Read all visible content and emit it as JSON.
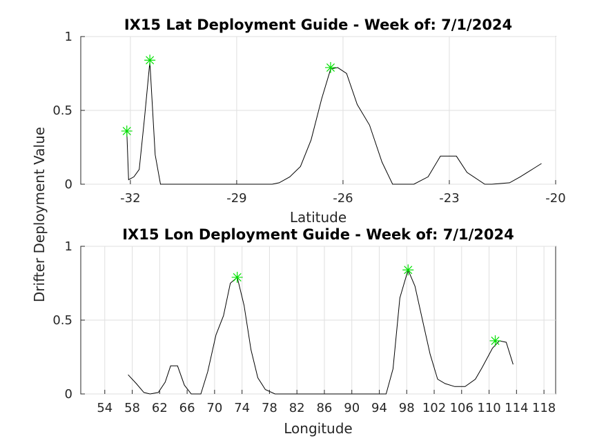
{
  "chart_data": [
    {
      "type": "line",
      "title": "IX15 Lat Deployment Guide - Week of: 7/1/2024",
      "xlabel": "Latitude",
      "ylabel": "Drifter Deployment Value",
      "xlim": [
        -33.4,
        -20
      ],
      "ylim": [
        0,
        1
      ],
      "xticks": [
        -32,
        -29,
        -26,
        -23,
        -20
      ],
      "yticks": [
        0,
        0.5,
        1
      ],
      "grid": true,
      "series": [
        {
          "x": [
            -32.1,
            -32.05,
            -31.9,
            -31.75,
            -31.6,
            -31.45,
            -31.3,
            -31.15,
            -30.9,
            -30.0,
            -29.0,
            -28.0,
            -27.8,
            -27.5,
            -27.2,
            -26.9,
            -26.6,
            -26.35,
            -26.15,
            -25.9,
            -25.6,
            -25.25,
            -24.9,
            -24.6,
            -24.3,
            -24.0,
            -23.6,
            -23.25,
            -22.8,
            -22.5,
            -22.0,
            -21.8,
            -21.3,
            -21.0,
            -20.6,
            -20.4
          ],
          "y": [
            0.36,
            0.03,
            0.05,
            0.1,
            0.45,
            0.83,
            0.2,
            0.0,
            0.0,
            0.0,
            0.0,
            0.0,
            0.01,
            0.05,
            0.12,
            0.3,
            0.58,
            0.78,
            0.79,
            0.75,
            0.54,
            0.4,
            0.15,
            0.0,
            0.0,
            0.0,
            0.05,
            0.19,
            0.19,
            0.08,
            0.0,
            0.0,
            0.01,
            0.05,
            0.11,
            0.14
          ]
        }
      ],
      "markers": [
        {
          "x": -32.1,
          "y": 0.36
        },
        {
          "x": -31.45,
          "y": 0.84
        },
        {
          "x": -26.35,
          "y": 0.79
        }
      ],
      "colors": {
        "line": "#000000",
        "marker": "#00e000",
        "grid": "#dfdfdf"
      }
    },
    {
      "type": "line",
      "title": "IX15 Lon Deployment Guide - Week of: 7/1/2024",
      "xlabel": "Longitude",
      "ylabel": "Drifter Deployment Value",
      "xlim": [
        50.5,
        119.7
      ],
      "ylim": [
        0,
        1
      ],
      "xticks": [
        54,
        58,
        62,
        66,
        70,
        74,
        78,
        82,
        86,
        90,
        94,
        98,
        102,
        106,
        110,
        114,
        118
      ],
      "yticks": [
        0,
        0.5,
        1
      ],
      "grid": true,
      "series": [
        {
          "x": [
            57.4,
            58.6,
            59.7,
            60.6,
            61.8,
            62.8,
            63.6,
            64.6,
            65.6,
            66.6,
            68.0,
            69.0,
            70.2,
            71.3,
            72.3,
            73.3,
            74.3,
            75.3,
            76.3,
            77.4,
            78.8,
            80.0,
            90.0,
            95.0,
            96.0,
            97.0,
            98.2,
            99.2,
            100.3,
            101.4,
            102.5,
            103.6,
            105.0,
            106.5,
            108.0,
            109.0,
            110.5,
            111.5,
            112.5,
            113.5
          ],
          "y": [
            0.13,
            0.07,
            0.01,
            0.0,
            0.01,
            0.08,
            0.19,
            0.19,
            0.06,
            0.0,
            0.0,
            0.15,
            0.4,
            0.53,
            0.75,
            0.79,
            0.6,
            0.3,
            0.11,
            0.03,
            0.0,
            0.0,
            0.0,
            0.0,
            0.17,
            0.65,
            0.84,
            0.73,
            0.5,
            0.27,
            0.1,
            0.07,
            0.05,
            0.05,
            0.1,
            0.18,
            0.31,
            0.36,
            0.35,
            0.2
          ]
        }
      ],
      "markers": [
        {
          "x": 73.3,
          "y": 0.79
        },
        {
          "x": 98.2,
          "y": 0.84
        },
        {
          "x": 110.9,
          "y": 0.36
        }
      ],
      "colors": {
        "line": "#000000",
        "marker": "#00e000",
        "grid": "#dfdfdf"
      }
    }
  ]
}
